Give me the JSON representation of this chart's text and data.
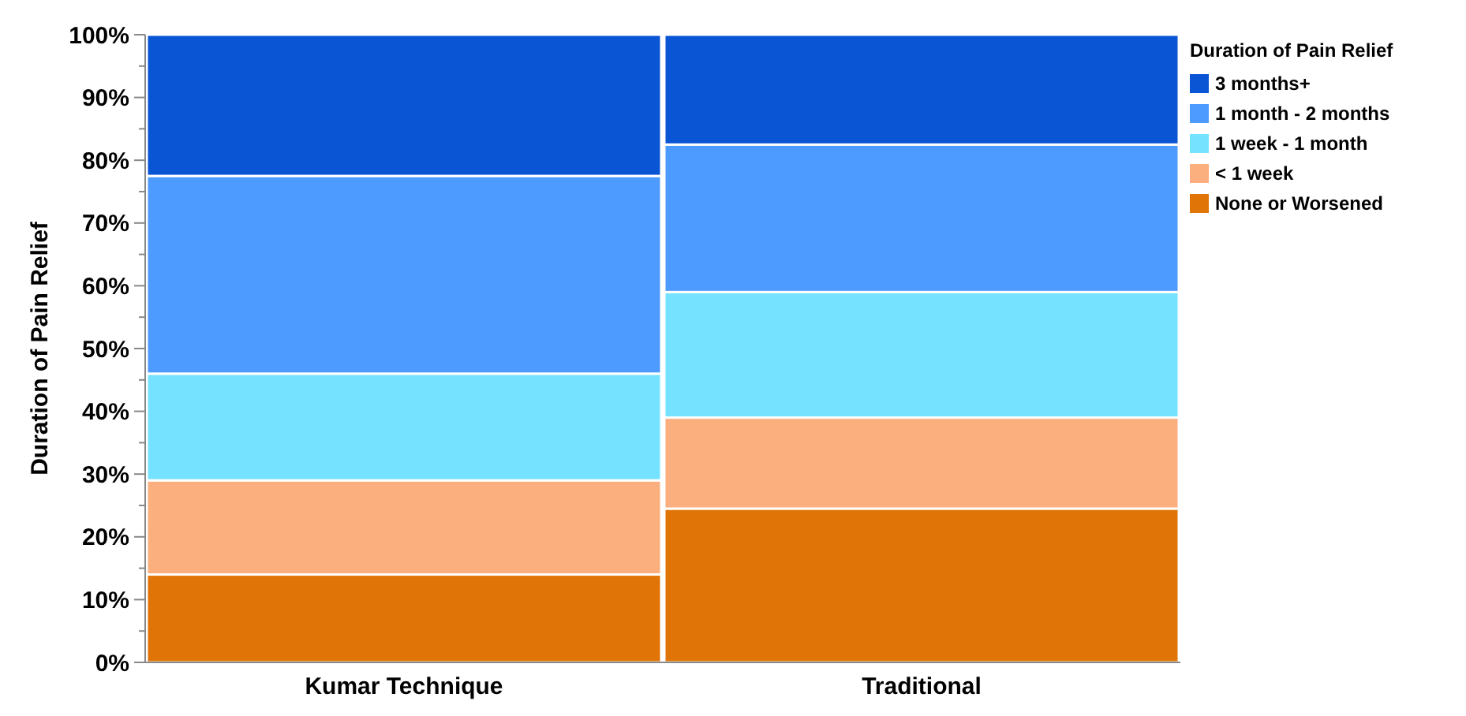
{
  "chart_data": {
    "type": "bar",
    "stacked": true,
    "categories": [
      "Kumar Technique",
      "Traditional"
    ],
    "ylabel": "Duration of Pain Relief",
    "legend_title": "Duration of Pain Relief",
    "legend": "right",
    "ylim": [
      0,
      100
    ],
    "yticks": [
      {
        "value": 0,
        "label": "0%"
      },
      {
        "value": 5,
        "label": null
      },
      {
        "value": 10,
        "label": "10%"
      },
      {
        "value": 15,
        "label": null
      },
      {
        "value": 20,
        "label": "20%"
      },
      {
        "value": 25,
        "label": null
      },
      {
        "value": 30,
        "label": "30%"
      },
      {
        "value": 35,
        "label": null
      },
      {
        "value": 40,
        "label": "40%"
      },
      {
        "value": 45,
        "label": null
      },
      {
        "value": 50,
        "label": "50%"
      },
      {
        "value": 55,
        "label": null
      },
      {
        "value": 60,
        "label": "60%"
      },
      {
        "value": 65,
        "label": null
      },
      {
        "value": 70,
        "label": "70%"
      },
      {
        "value": 75,
        "label": null
      },
      {
        "value": 80,
        "label": "80%"
      },
      {
        "value": 85,
        "label": null
      },
      {
        "value": 90,
        "label": "90%"
      },
      {
        "value": 95,
        "label": null
      },
      {
        "value": 100,
        "label": "100%"
      }
    ],
    "series": [
      {
        "name": "None or Worsened",
        "color": "#e07406",
        "values": [
          14,
          24.5
        ]
      },
      {
        "name": "< 1 week",
        "color": "#fbae7e",
        "values": [
          15,
          14.5
        ]
      },
      {
        "name": "1 week - 1 month",
        "color": "#75e3ff",
        "values": [
          17,
          20
        ]
      },
      {
        "name": "1 month - 2 months",
        "color": "#4d9bff",
        "values": [
          31.5,
          23.5
        ]
      },
      {
        "name": "3 months+",
        "color": "#0a55d4",
        "values": [
          22.5,
          17.5
        ]
      }
    ]
  }
}
